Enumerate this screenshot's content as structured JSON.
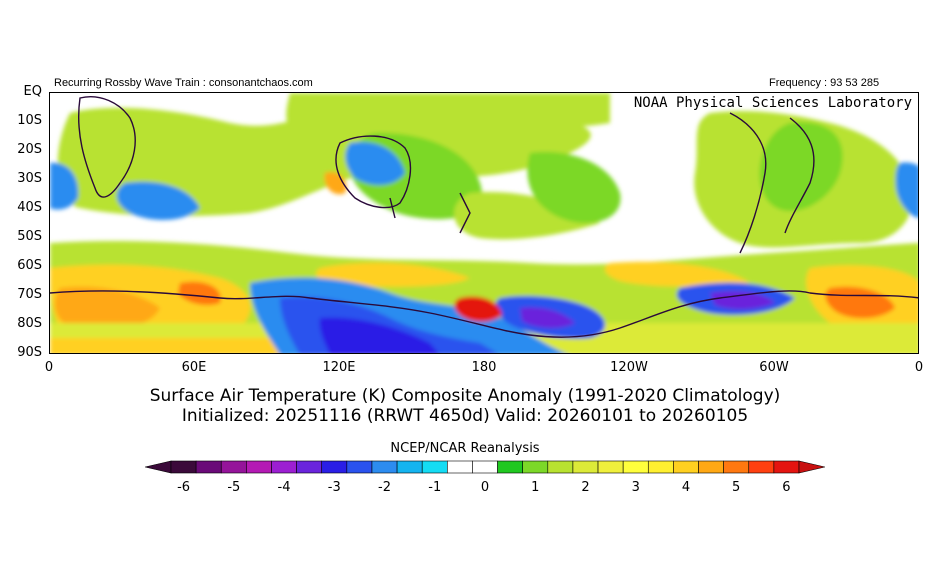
{
  "header": {
    "left_text": "Recurring Rossby Wave Train : consonantchaos.com",
    "right_text": "Frequency : 93 53 285",
    "lab_text": "NOAA Physical Sciences Laboratory"
  },
  "map": {
    "y_ticks": [
      "EQ",
      "10S",
      "20S",
      "30S",
      "40S",
      "50S",
      "60S",
      "70S",
      "80S",
      "90S"
    ],
    "x_ticks": [
      "0",
      "60E",
      "120E",
      "180",
      "120W",
      "60W",
      "0"
    ]
  },
  "title": {
    "line1": "Surface Air Temperature (K) Composite Anomaly (1991-2020 Climatology)",
    "line2": "Initialized: 20251116 (RRWT 4650d) Valid: 20260101 to 20260105"
  },
  "source": "NCEP/NCAR Reanalysis",
  "colorbar": {
    "labels": [
      "-6",
      "-5",
      "-4",
      "-3",
      "-2",
      "-1",
      "0",
      "1",
      "2",
      "3",
      "4",
      "5",
      "6"
    ],
    "colors": [
      "#3b0a3a",
      "#6a0a78",
      "#95149a",
      "#b41ab4",
      "#9c1fd2",
      "#6a24dc",
      "#2a1ee6",
      "#2a52ee",
      "#2c8cf0",
      "#14b4f0",
      "#14dcf4",
      "#ffffff",
      "#ffffff",
      "#20c820",
      "#7cd828",
      "#b8e230",
      "#dcea38",
      "#f0f03c",
      "#ffff3c",
      "#fff030",
      "#ffd020",
      "#ffa814",
      "#ff7810",
      "#ff4010",
      "#e41410"
    ],
    "low_color": "#3b0a3a",
    "high_color": "#c81010"
  }
}
